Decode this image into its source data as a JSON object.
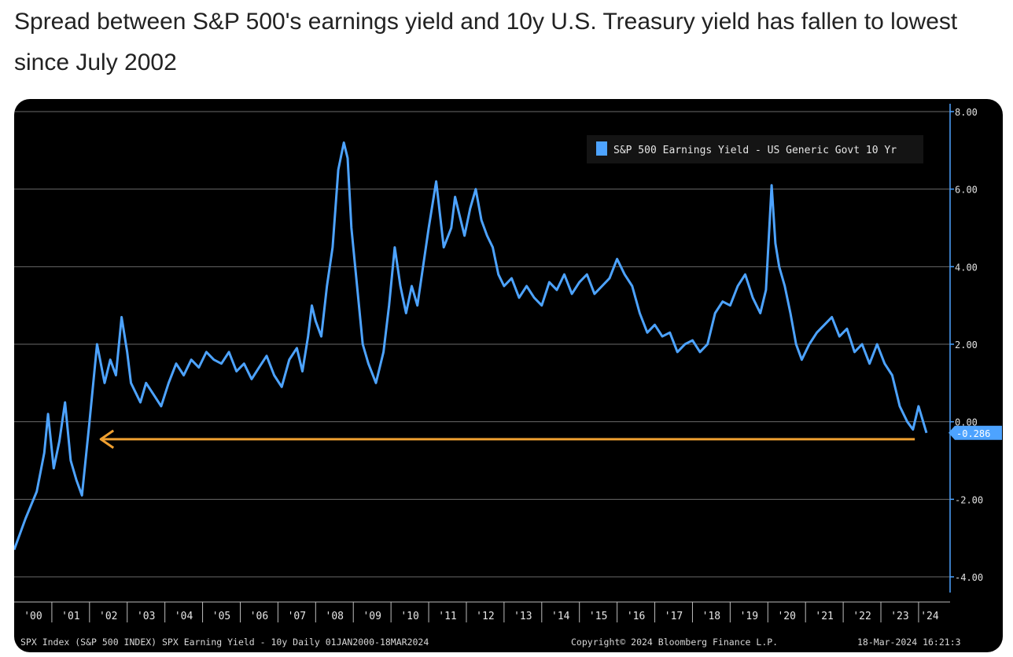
{
  "headline": "Spread between S&P 500's earnings yield and 10y U.S. Treasury yield has fallen to lowest since July 2002",
  "colors": {
    "background": "#000000",
    "series": "#4da3ff",
    "arrow": "#f0a030",
    "grid": "#6a6a6a",
    "label_box": "#4da3ff"
  },
  "chart_data": {
    "type": "line",
    "ylim": [
      -4.0,
      8.0
    ],
    "yticks": [
      "8.00",
      "6.00",
      "4.00",
      "2.00",
      "0.00",
      "-2.00",
      "-4.00"
    ],
    "ytick_values": [
      8,
      6,
      4,
      2,
      0,
      -2,
      -4
    ],
    "xlim": [
      2000.0,
      2024.21
    ],
    "xtick_labels": [
      "'00",
      "'01",
      "'02",
      "'03",
      "'04",
      "'05",
      "'06",
      "'07",
      "'08",
      "'09",
      "'10",
      "'11",
      "'12",
      "'13",
      "'14",
      "'15",
      "'16",
      "'17",
      "'18",
      "'19",
      "'20",
      "'21",
      "'22",
      "'23",
      "'24"
    ],
    "xtick_years": [
      2000,
      2001,
      2002,
      2003,
      2004,
      2005,
      2006,
      2007,
      2008,
      2009,
      2010,
      2011,
      2012,
      2013,
      2014,
      2015,
      2016,
      2017,
      2018,
      2019,
      2020,
      2021,
      2022,
      2023,
      2024
    ],
    "grid": true,
    "legend": {
      "position": "top-right"
    },
    "series": [
      {
        "name": "S&P 500 Earnings Yield - US Generic Govt 10 Yr",
        "x": [
          2000.0,
          2000.3,
          2000.6,
          2000.8,
          2000.9,
          2001.05,
          2001.2,
          2001.35,
          2001.5,
          2001.65,
          2001.8,
          2002.0,
          2002.2,
          2002.4,
          2002.55,
          2002.7,
          2002.85,
          2003.0,
          2003.1,
          2003.2,
          2003.35,
          2003.5,
          2003.7,
          2003.9,
          2004.1,
          2004.3,
          2004.5,
          2004.7,
          2004.9,
          2005.1,
          2005.3,
          2005.5,
          2005.7,
          2005.9,
          2006.1,
          2006.3,
          2006.5,
          2006.7,
          2006.9,
          2007.1,
          2007.3,
          2007.5,
          2007.65,
          2007.8,
          2007.9,
          2008.0,
          2008.15,
          2008.3,
          2008.45,
          2008.6,
          2008.75,
          2008.85,
          2008.95,
          2009.1,
          2009.25,
          2009.4,
          2009.6,
          2009.8,
          2009.95,
          2010.1,
          2010.25,
          2010.4,
          2010.55,
          2010.7,
          2010.85,
          2011.0,
          2011.2,
          2011.4,
          2011.6,
          2011.7,
          2011.8,
          2011.95,
          2012.1,
          2012.25,
          2012.4,
          2012.55,
          2012.7,
          2012.85,
          2013.0,
          2013.2,
          2013.4,
          2013.6,
          2013.8,
          2014.0,
          2014.2,
          2014.4,
          2014.6,
          2014.8,
          2015.0,
          2015.2,
          2015.4,
          2015.6,
          2015.8,
          2016.0,
          2016.2,
          2016.4,
          2016.6,
          2016.8,
          2017.0,
          2017.2,
          2017.4,
          2017.6,
          2017.8,
          2018.0,
          2018.2,
          2018.4,
          2018.6,
          2018.8,
          2019.0,
          2019.2,
          2019.4,
          2019.6,
          2019.8,
          2019.95,
          2020.1,
          2020.2,
          2020.3,
          2020.45,
          2020.6,
          2020.75,
          2020.9,
          2021.1,
          2021.3,
          2021.5,
          2021.7,
          2021.9,
          2022.1,
          2022.3,
          2022.5,
          2022.7,
          2022.9,
          2023.1,
          2023.3,
          2023.5,
          2023.7,
          2023.85,
          2024.0,
          2024.21
        ],
        "values": [
          -3.3,
          -2.5,
          -1.8,
          -0.8,
          0.2,
          -1.2,
          -0.5,
          0.5,
          -1.0,
          -1.5,
          -1.9,
          0.0,
          2.0,
          1.0,
          1.6,
          1.2,
          2.7,
          1.8,
          1.0,
          0.8,
          0.5,
          1.0,
          0.7,
          0.4,
          1.0,
          1.5,
          1.2,
          1.6,
          1.4,
          1.8,
          1.6,
          1.5,
          1.8,
          1.3,
          1.5,
          1.1,
          1.4,
          1.7,
          1.2,
          0.9,
          1.6,
          1.9,
          1.3,
          2.2,
          3.0,
          2.6,
          2.2,
          3.5,
          4.5,
          6.5,
          7.2,
          6.8,
          5.0,
          3.5,
          2.0,
          1.5,
          1.0,
          1.8,
          3.0,
          4.5,
          3.5,
          2.8,
          3.5,
          3.0,
          4.0,
          5.0,
          6.2,
          4.5,
          5.0,
          5.8,
          5.4,
          4.8,
          5.5,
          6.0,
          5.2,
          4.8,
          4.5,
          3.8,
          3.5,
          3.7,
          3.2,
          3.5,
          3.2,
          3.0,
          3.6,
          3.4,
          3.8,
          3.3,
          3.6,
          3.8,
          3.3,
          3.5,
          3.7,
          4.2,
          3.8,
          3.5,
          2.8,
          2.3,
          2.5,
          2.2,
          2.3,
          1.8,
          2.0,
          2.1,
          1.8,
          2.0,
          2.8,
          3.1,
          3.0,
          3.5,
          3.8,
          3.2,
          2.8,
          3.4,
          6.1,
          4.6,
          4.0,
          3.5,
          2.8,
          2.0,
          1.6,
          2.0,
          2.3,
          2.5,
          2.7,
          2.2,
          2.4,
          1.8,
          2.0,
          1.5,
          2.0,
          1.5,
          1.2,
          0.4,
          0.0,
          -0.2,
          0.4,
          -0.286
        ]
      }
    ],
    "last_value_label": "-0.286",
    "annotation_arrow": {
      "from_x": 2023.9,
      "to_x": 2002.3,
      "y": -0.45
    }
  },
  "footer": {
    "left": "SPX Index (S&P 500 INDEX) SPX Earning Yield - 10y  Daily 01JAN2000-18MAR2024",
    "center": "Copyright© 2024 Bloomberg Finance L.P.",
    "right": "18-Mar-2024 16:21:3"
  }
}
